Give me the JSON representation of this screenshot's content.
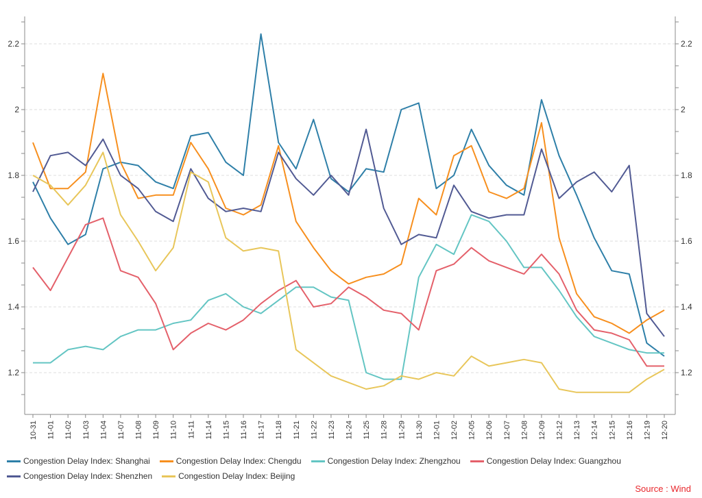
{
  "chart_data": {
    "type": "line",
    "title": "",
    "xlabel": "",
    "ylabel": "",
    "ylim": [
      1.073,
      2.283
    ],
    "yticks": [
      1.2,
      1.4,
      1.6,
      1.8,
      2,
      2.2
    ],
    "ytick_labels": [
      "1.2",
      "1.4",
      "1.6",
      "1.8",
      "2",
      "2.2"
    ],
    "grid": true,
    "legend_position": "bottom",
    "categories": [
      "10-31",
      "11-01",
      "11-02",
      "11-03",
      "11-04",
      "11-07",
      "11-08",
      "11-09",
      "11-10",
      "11-11",
      "11-14",
      "11-15",
      "11-16",
      "11-17",
      "11-18",
      "11-21",
      "11-22",
      "11-23",
      "11-24",
      "11-25",
      "11-28",
      "11-29",
      "11-30",
      "12-01",
      "12-02",
      "12-05",
      "12-06",
      "12-07",
      "12-08",
      "12-09",
      "12-12",
      "12-13",
      "12-14",
      "12-15",
      "12-16",
      "12-19",
      "12-20"
    ],
    "series": [
      {
        "name": "Congestion Delay Index: Shanghai",
        "color": "#2e7fa8",
        "values": [
          1.78,
          1.67,
          1.59,
          1.62,
          1.82,
          1.84,
          1.83,
          1.78,
          1.76,
          1.92,
          1.93,
          1.84,
          1.8,
          2.23,
          1.9,
          1.82,
          1.97,
          1.79,
          1.75,
          1.82,
          1.81,
          2.0,
          2.02,
          1.76,
          1.8,
          1.94,
          1.83,
          1.77,
          1.74,
          2.03,
          1.86,
          1.74,
          1.61,
          1.51,
          1.5,
          1.29,
          1.25
        ]
      },
      {
        "name": "Congestion Delay Index: Chengdu",
        "color": "#f78f1e",
        "values": [
          1.9,
          1.76,
          1.76,
          1.81,
          2.11,
          1.84,
          1.73,
          1.74,
          1.74,
          1.9,
          1.82,
          1.7,
          1.68,
          1.71,
          1.89,
          1.66,
          1.58,
          1.51,
          1.47,
          1.49,
          1.5,
          1.53,
          1.73,
          1.68,
          1.86,
          1.89,
          1.75,
          1.73,
          1.76,
          1.96,
          1.61,
          1.44,
          1.37,
          1.35,
          1.32,
          1.36,
          1.39
        ]
      },
      {
        "name": "Congestion Delay Index: Zhengzhou",
        "color": "#63c5c3",
        "values": [
          1.23,
          1.23,
          1.27,
          1.28,
          1.27,
          1.31,
          1.33,
          1.33,
          1.35,
          1.36,
          1.42,
          1.44,
          1.4,
          1.38,
          1.42,
          1.46,
          1.46,
          1.43,
          1.42,
          1.2,
          1.18,
          1.18,
          1.49,
          1.59,
          1.56,
          1.68,
          1.66,
          1.6,
          1.52,
          1.52,
          1.45,
          1.37,
          1.31,
          1.29,
          1.27,
          1.26,
          1.26
        ]
      },
      {
        "name": "Congestion Delay Index: Guangzhou",
        "color": "#e4606a",
        "values": [
          1.52,
          1.45,
          1.55,
          1.65,
          1.67,
          1.51,
          1.49,
          1.41,
          1.27,
          1.32,
          1.35,
          1.33,
          1.36,
          1.41,
          1.45,
          1.48,
          1.4,
          1.41,
          1.46,
          1.43,
          1.39,
          1.38,
          1.33,
          1.51,
          1.53,
          1.58,
          1.54,
          1.52,
          1.5,
          1.56,
          1.5,
          1.39,
          1.33,
          1.32,
          1.3,
          1.22,
          1.22
        ]
      },
      {
        "name": "Congestion Delay Index: Shenzhen",
        "color": "#515a93",
        "values": [
          1.75,
          1.86,
          1.87,
          1.83,
          1.91,
          1.8,
          1.76,
          1.69,
          1.66,
          1.82,
          1.73,
          1.69,
          1.7,
          1.69,
          1.87,
          1.79,
          1.74,
          1.8,
          1.74,
          1.94,
          1.7,
          1.59,
          1.62,
          1.61,
          1.77,
          1.69,
          1.67,
          1.68,
          1.68,
          1.88,
          1.73,
          1.78,
          1.81,
          1.75,
          1.83,
          1.38,
          1.31
        ]
      },
      {
        "name": "Congestion Delay Index: Beijing",
        "color": "#e8c65a",
        "values": [
          1.8,
          1.77,
          1.71,
          1.77,
          1.87,
          1.68,
          1.6,
          1.51,
          1.58,
          1.81,
          1.78,
          1.61,
          1.57,
          1.58,
          1.57,
          1.27,
          1.23,
          1.19,
          1.17,
          1.15,
          1.16,
          1.19,
          1.18,
          1.2,
          1.19,
          1.25,
          1.22,
          1.23,
          1.24,
          1.23,
          1.15,
          1.14,
          1.14,
          1.14,
          1.14,
          1.18,
          1.21
        ]
      }
    ]
  },
  "source": "Source : Wind"
}
